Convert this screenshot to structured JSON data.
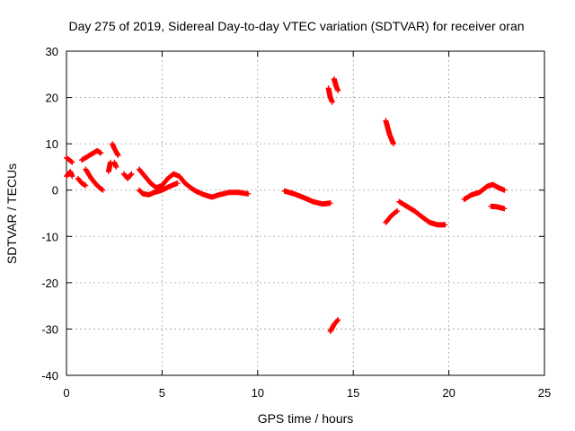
{
  "chart_data": {
    "type": "scatter",
    "title": "Day 275 of 2019, Sidereal Day-to-day VTEC variation (SDTVAR) for receiver oran",
    "xlabel": "GPS time / hours",
    "ylabel": "SDTVAR / TECUs",
    "xlim": [
      0,
      25
    ],
    "ylim": [
      -40,
      30
    ],
    "xticks": [
      0,
      5,
      10,
      15,
      20,
      25
    ],
    "yticks": [
      -40,
      -30,
      -20,
      -10,
      0,
      10,
      20,
      30
    ],
    "grid": true,
    "marker": "plus",
    "color": "#ff0000",
    "segments": [
      [
        [
          0.0,
          7.0
        ],
        [
          0.3,
          6.0
        ]
      ],
      [
        [
          0.0,
          3.0
        ],
        [
          0.2,
          4.0
        ],
        [
          0.3,
          3.0
        ]
      ],
      [
        [
          0.6,
          2.5
        ],
        [
          0.8,
          1.5
        ],
        [
          1.0,
          1.0
        ]
      ],
      [
        [
          0.8,
          6.5
        ],
        [
          1.2,
          7.5
        ],
        [
          1.6,
          8.5
        ],
        [
          1.8,
          8.0
        ]
      ],
      [
        [
          1.0,
          4.5
        ],
        [
          1.3,
          2.5
        ],
        [
          1.6,
          1.0
        ],
        [
          1.9,
          0.0
        ]
      ],
      [
        [
          2.2,
          4.0
        ],
        [
          2.3,
          6.0
        ]
      ],
      [
        [
          2.4,
          10.0
        ],
        [
          2.5,
          9.0
        ],
        [
          2.7,
          7.5
        ]
      ],
      [
        [
          2.5,
          6.0
        ],
        [
          2.6,
          5.0
        ]
      ],
      [
        [
          3.0,
          3.5
        ],
        [
          3.2,
          2.5
        ],
        [
          3.4,
          3.5
        ]
      ],
      [
        [
          3.8,
          4.5
        ],
        [
          4.1,
          3.0
        ],
        [
          4.4,
          1.5
        ],
        [
          4.7,
          0.5
        ],
        [
          5.0,
          1.0
        ],
        [
          5.3,
          2.5
        ],
        [
          5.6,
          3.5
        ],
        [
          5.9,
          3.0
        ],
        [
          6.2,
          1.5
        ],
        [
          6.5,
          0.5
        ],
        [
          6.8,
          -0.3
        ],
        [
          7.2,
          -1.0
        ],
        [
          7.6,
          -1.5
        ],
        [
          8.0,
          -1.0
        ],
        [
          8.5,
          -0.5
        ],
        [
          9.0,
          -0.5
        ],
        [
          9.5,
          -0.8
        ]
      ],
      [
        [
          3.8,
          0.0
        ],
        [
          4.0,
          -0.8
        ],
        [
          4.3,
          -1.0
        ],
        [
          4.6,
          -0.5
        ],
        [
          5.0,
          0.0
        ],
        [
          5.4,
          0.8
        ],
        [
          5.8,
          1.5
        ]
      ],
      [
        [
          11.4,
          -0.2
        ],
        [
          11.9,
          -0.8
        ],
        [
          12.4,
          -1.6
        ],
        [
          12.9,
          -2.5
        ],
        [
          13.4,
          -3.0
        ],
        [
          13.8,
          -2.8
        ]
      ],
      [
        [
          13.7,
          22.0
        ],
        [
          13.8,
          20.0
        ],
        [
          13.9,
          19.0
        ]
      ],
      [
        [
          14.0,
          24.0
        ],
        [
          14.1,
          22.5
        ],
        [
          14.2,
          21.5
        ]
      ],
      [
        [
          13.8,
          -30.5
        ],
        [
          14.0,
          -29.0
        ],
        [
          14.2,
          -28.0
        ]
      ],
      [
        [
          16.7,
          15.0
        ],
        [
          16.8,
          13.5
        ],
        [
          16.9,
          12.0
        ],
        [
          17.1,
          10.0
        ]
      ],
      [
        [
          16.7,
          -7.0
        ],
        [
          17.0,
          -5.5
        ],
        [
          17.3,
          -4.5
        ]
      ],
      [
        [
          17.4,
          -2.5
        ],
        [
          17.8,
          -3.5
        ],
        [
          18.2,
          -4.5
        ],
        [
          18.6,
          -5.8
        ],
        [
          19.0,
          -7.0
        ],
        [
          19.4,
          -7.5
        ],
        [
          19.8,
          -7.5
        ]
      ],
      [
        [
          20.8,
          -2.0
        ],
        [
          21.2,
          -1.0
        ],
        [
          21.6,
          -0.5
        ],
        [
          22.0,
          0.8
        ],
        [
          22.3,
          1.2
        ],
        [
          22.6,
          0.5
        ],
        [
          22.9,
          0.0
        ]
      ],
      [
        [
          22.2,
          -3.5
        ],
        [
          22.5,
          -3.6
        ],
        [
          22.9,
          -4.0
        ]
      ]
    ]
  }
}
